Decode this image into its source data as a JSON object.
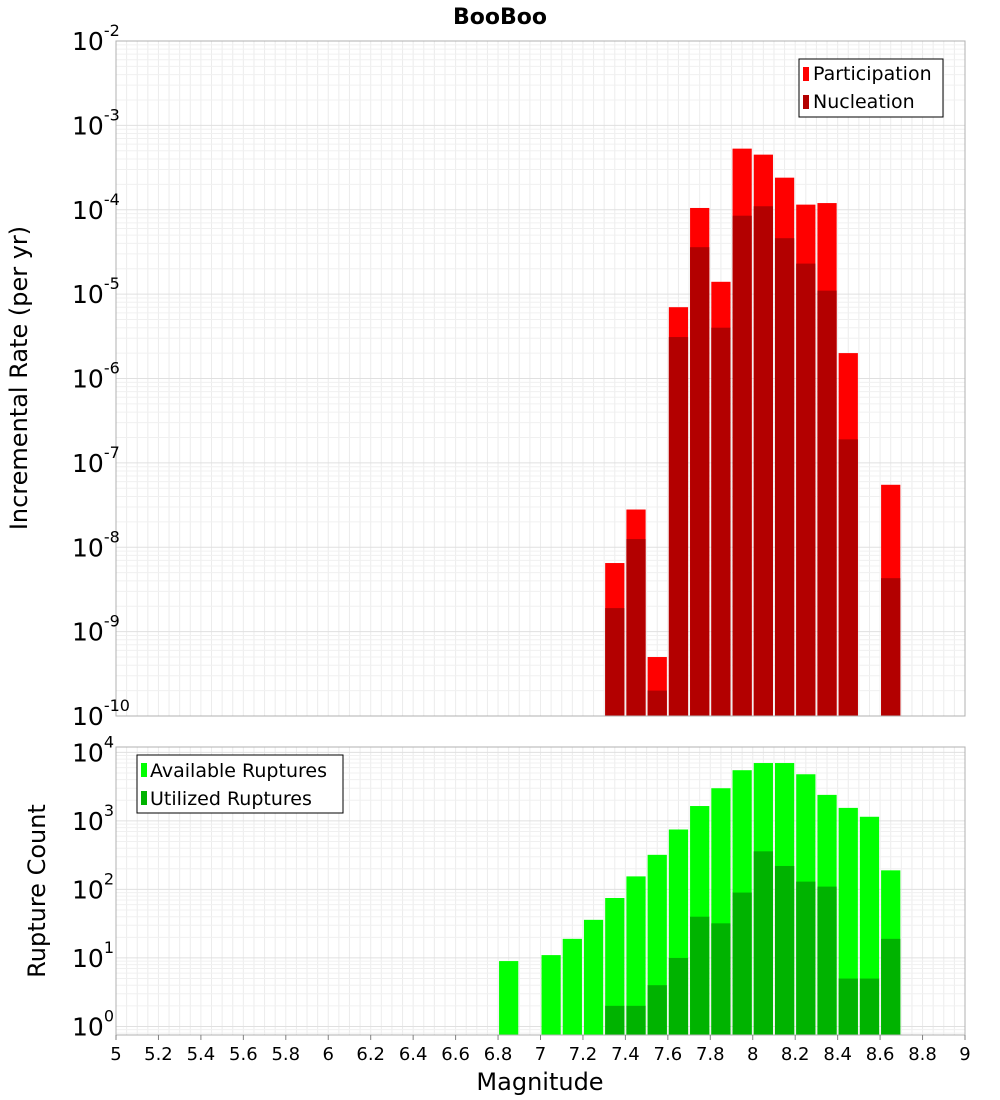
{
  "chart_data": [
    {
      "type": "bar",
      "title": "BooBoo",
      "xlabel": "Magnitude",
      "ylabel": "Incremental Rate (per yr)",
      "yscale": "log",
      "ylim": [
        1e-10,
        0.01
      ],
      "xlim": [
        5,
        9
      ],
      "y_tick_exponents": [
        -10,
        -9,
        -8,
        -7,
        -6,
        -5,
        -4,
        -3,
        -2
      ],
      "bar_width": 0.1,
      "grid": true,
      "legend_position": "top-right",
      "series": [
        {
          "name": "Participation",
          "color": "#ff0000",
          "x": [
            7.35,
            7.45,
            7.55,
            7.65,
            7.75,
            7.85,
            7.95,
            8.05,
            8.15,
            8.25,
            8.35,
            8.45,
            8.65
          ],
          "values": [
            6.5e-09,
            2.8e-08,
            5e-10,
            7e-06,
            0.000105,
            1.4e-05,
            0.00053,
            0.00045,
            0.00024,
            0.000115,
            0.00012,
            2e-06,
            5.5e-08
          ]
        },
        {
          "name": "Nucleation",
          "color": "#b30000",
          "x": [
            7.35,
            7.45,
            7.55,
            7.65,
            7.75,
            7.85,
            7.95,
            8.05,
            8.15,
            8.25,
            8.35,
            8.45,
            8.65
          ],
          "values": [
            1.9e-09,
            1.25e-08,
            2e-10,
            3.1e-06,
            3.6e-05,
            4e-06,
            8.5e-05,
            0.00011,
            4.6e-05,
            2.3e-05,
            1.1e-05,
            1.9e-07,
            4.3e-09
          ]
        }
      ]
    },
    {
      "type": "bar",
      "title": "",
      "xlabel": "Magnitude",
      "ylabel": "Rupture Count",
      "yscale": "log",
      "ylim": [
        0.75,
        12000
      ],
      "xlim": [
        5,
        9
      ],
      "y_tick_exponents": [
        0,
        1,
        2,
        3,
        4
      ],
      "x_ticks": [
        "5",
        "5.2",
        "5.4",
        "5.6",
        "5.8",
        "6",
        "6.2",
        "6.4",
        "6.6",
        "6.8",
        "7",
        "7.2",
        "7.4",
        "7.6",
        "7.8",
        "8",
        "8.2",
        "8.4",
        "8.6",
        "8.8",
        "9"
      ],
      "bar_width": 0.1,
      "grid": true,
      "legend_position": "top-left",
      "series": [
        {
          "name": "Available Ruptures",
          "color": "#00ff00",
          "x": [
            6.85,
            7.05,
            7.15,
            7.25,
            7.35,
            7.45,
            7.55,
            7.65,
            7.75,
            7.85,
            7.95,
            8.05,
            8.15,
            8.25,
            8.35,
            8.45,
            8.55,
            8.65
          ],
          "values": [
            9,
            11,
            19,
            36,
            75,
            155,
            320,
            750,
            1650,
            3000,
            5500,
            7000,
            7000,
            4800,
            2400,
            1550,
            1150,
            190
          ]
        },
        {
          "name": "Utilized Ruptures",
          "color": "#00b300",
          "x": [
            7.35,
            7.45,
            7.55,
            7.65,
            7.75,
            7.85,
            7.95,
            8.05,
            8.15,
            8.25,
            8.35,
            8.45,
            8.55,
            8.65
          ],
          "values": [
            2,
            2,
            4,
            10,
            40,
            32,
            90,
            360,
            220,
            130,
            110,
            5,
            5,
            19
          ]
        }
      ]
    }
  ]
}
